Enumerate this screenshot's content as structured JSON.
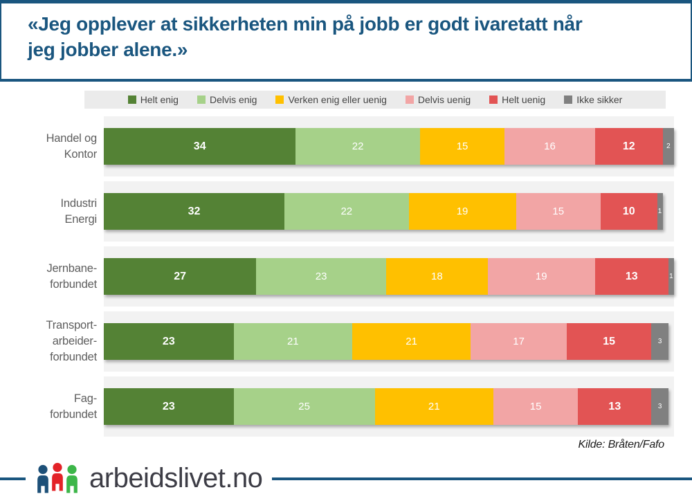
{
  "title": {
    "full": "«Jeg opplever at sikkerheten min på jobb er godt ivaretatt når jeg jobber alene.»",
    "line1": "«Jeg opplever at sikkerheten min på jobb er godt ivaretatt når",
    "line2": "jeg jobber alene.»"
  },
  "chart_data": {
    "type": "bar",
    "orientation": "horizontal-stacked",
    "unit": "percent",
    "legend_position": "top",
    "axis_max_units": 101,
    "categories": [
      "Handel og Kontor",
      "Industri Energi",
      "Jernbane-forbundet",
      "Transport-arbeider-forbundet",
      "Fag-forbundet"
    ],
    "category_label_lines": [
      [
        "Handel og",
        "Kontor"
      ],
      [
        "Industri",
        "Energi"
      ],
      [
        "Jernbane-",
        "forbundet"
      ],
      [
        "Transport-",
        "arbeider-",
        "forbundet"
      ],
      [
        "Fag-",
        "forbundet"
      ]
    ],
    "series": [
      {
        "name": "Helt enig",
        "color": "#548235",
        "bold_labels": true,
        "values": [
          34,
          32,
          27,
          23,
          23
        ]
      },
      {
        "name": "Delvis enig",
        "color": "#a6d189",
        "bold_labels": false,
        "values": [
          22,
          22,
          23,
          21,
          25
        ]
      },
      {
        "name": "Verken enig eller uenig",
        "color": "#ffc000",
        "bold_labels": false,
        "values": [
          15,
          19,
          18,
          21,
          21
        ]
      },
      {
        "name": "Delvis uenig",
        "color": "#f2a5a5",
        "bold_labels": false,
        "values": [
          16,
          15,
          19,
          17,
          15
        ]
      },
      {
        "name": "Helt uenig",
        "color": "#e25454",
        "bold_labels": true,
        "values": [
          12,
          10,
          13,
          15,
          13
        ]
      },
      {
        "name": "Ikke sikker",
        "color": "#808080",
        "small_labels": true,
        "values": [
          2,
          1,
          1,
          3,
          3
        ]
      }
    ]
  },
  "source": "Kilde: Bråten/Fafo",
  "footer": {
    "site_name": "arbeidslivet.no",
    "logo_colors": [
      "#1d5078",
      "#e32227",
      "#3cb649"
    ]
  },
  "colors": {
    "accent_blue": "#1a567f",
    "legend_background": "#ebebeb",
    "plot_band_background": "#f2f2f2",
    "category_label": "#5d5d5d"
  }
}
